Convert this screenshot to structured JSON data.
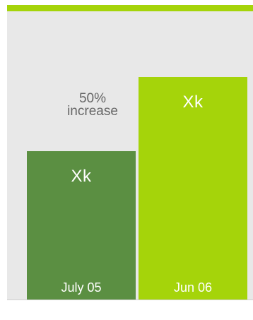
{
  "colors": {
    "accent": "#a5d40a",
    "panel": "#e8e8e8",
    "bar_1": "#5b8f42",
    "bar_2": "#a5d40a"
  },
  "annotation": {
    "line1": "50%",
    "line2": "increase"
  },
  "chart_data": {
    "type": "bar",
    "categories": [
      "July 05",
      "Jun 06"
    ],
    "values": [
      2,
      3
    ],
    "value_labels": [
      "Xk",
      "Xk"
    ],
    "ylim": [
      0,
      3.5
    ],
    "grid": false,
    "title": "",
    "xlabel": "",
    "ylabel": ""
  }
}
